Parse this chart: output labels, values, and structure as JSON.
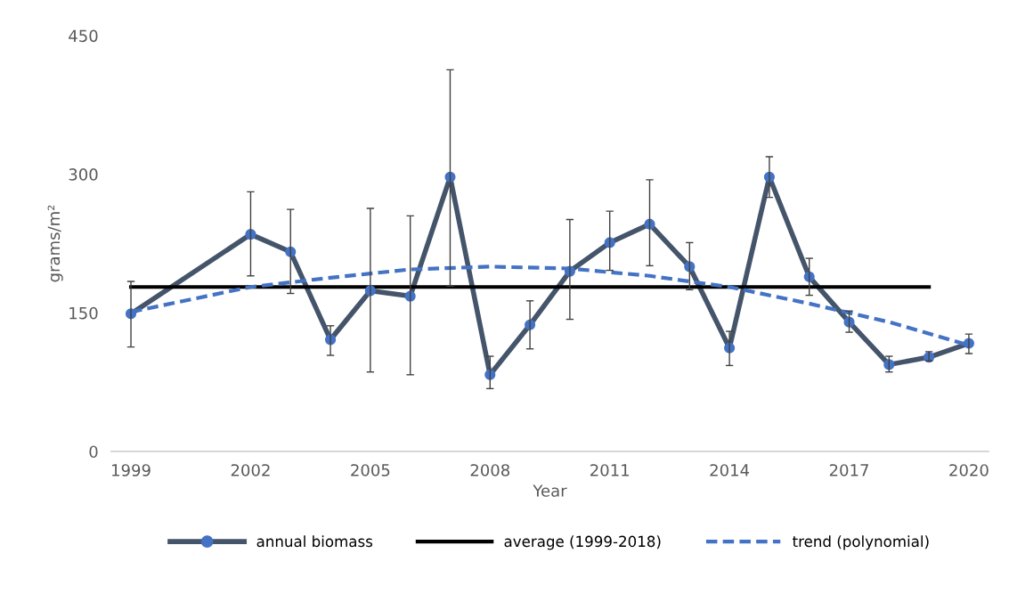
{
  "chart_data": {
    "type": "line",
    "xlabel": "Year",
    "ylabel": "grams/m²",
    "xlim": [
      1998.5,
      2020.5
    ],
    "xticks": [
      1999,
      2002,
      2005,
      2008,
      2011,
      2014,
      2017,
      2020
    ],
    "ylim": [
      0,
      450
    ],
    "yticks": [
      0,
      150,
      300,
      450
    ],
    "grid": false,
    "legend": "bottom",
    "series": [
      {
        "name": "annual biomass",
        "color": "#44546a",
        "colors": [
          "#4472c4",
          "#4472c4",
          "#4472c4",
          "#4472c4",
          "#4472c4",
          "#4472c4",
          "#4472c4",
          "#4472c4",
          "#4472c4",
          "#4472c4",
          "#4472c4",
          "#4472c4",
          "#4472c4",
          "#4472c4",
          "#4472c4",
          "#4472c4",
          "#4472c4",
          "#4472c4",
          "#4472c4",
          "#4472c4"
        ],
        "marker": "circle",
        "line_style": "solid",
        "x": [
          1999,
          2002,
          2003,
          2004,
          2005,
          2006,
          2007,
          2008,
          2009,
          2010,
          2011,
          2012,
          2013,
          2014,
          2015,
          2016,
          2017,
          2018,
          2019,
          2020
        ],
        "values": [
          149,
          235,
          216,
          121,
          174,
          168,
          297,
          83,
          137,
          195,
          226,
          246,
          200,
          112,
          297,
          189,
          140,
          94,
          102,
          117
        ],
        "errors": [
          [
            113,
            184
          ],
          [
            190,
            281
          ],
          [
            171,
            262
          ],
          [
            104,
            136
          ],
          [
            86,
            263
          ],
          [
            83,
            255
          ],
          [
            179,
            413
          ],
          [
            68,
            103
          ],
          [
            111,
            163
          ],
          [
            143,
            251
          ],
          [
            196,
            260
          ],
          [
            201,
            294
          ],
          [
            175,
            226
          ],
          [
            93,
            130
          ],
          [
            275,
            319
          ],
          [
            169,
            209
          ],
          [
            129,
            152
          ],
          [
            86,
            103
          ],
          [
            98,
            108
          ],
          [
            106,
            127
          ]
        ]
      },
      {
        "name": "average (1999-2018)",
        "color": "#000000",
        "marker": "none",
        "line_style": "solid",
        "x": [
          1999,
          2019
        ],
        "values": [
          178,
          178
        ]
      },
      {
        "name": "trend (polynomial)",
        "color": "#4472c4",
        "marker": "none",
        "line_style": "dashed",
        "x": [
          1999,
          2002,
          2004,
          2006,
          2008,
          2010,
          2012,
          2014,
          2016,
          2018,
          2020
        ],
        "values": [
          151,
          178,
          188,
          197,
          200,
          198,
          190,
          178,
          160,
          140,
          115
        ]
      }
    ]
  }
}
